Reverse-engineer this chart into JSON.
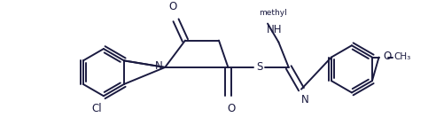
{
  "bg_color": "#ffffff",
  "line_color": "#1a1a40",
  "line_width": 1.4,
  "font_size": 8.5,
  "figsize": [
    4.92,
    1.5
  ],
  "dpi": 100,
  "xlim": [
    0,
    492
  ],
  "ylim": [
    0,
    150
  ]
}
